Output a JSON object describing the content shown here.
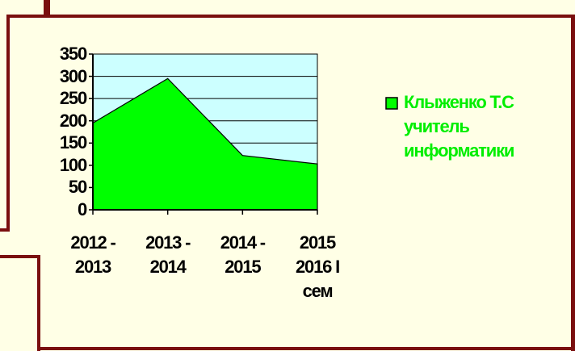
{
  "chart_data": {
    "type": "area",
    "categories": [
      "2012 - 2013",
      "2013 - 2014",
      "2014 - 2015",
      "2015 2016 I сем"
    ],
    "series": [
      {
        "name": "Клыженко Т.С учитель информатики",
        "color": "#00ff00",
        "values": [
          195,
          295,
          122,
          103
        ]
      }
    ],
    "ylim": [
      0,
      350
    ],
    "yticks": [
      0,
      50,
      100,
      150,
      200,
      250,
      300,
      350
    ],
    "grid": true,
    "plot_background": "#ccffff",
    "legend": "right"
  }
}
